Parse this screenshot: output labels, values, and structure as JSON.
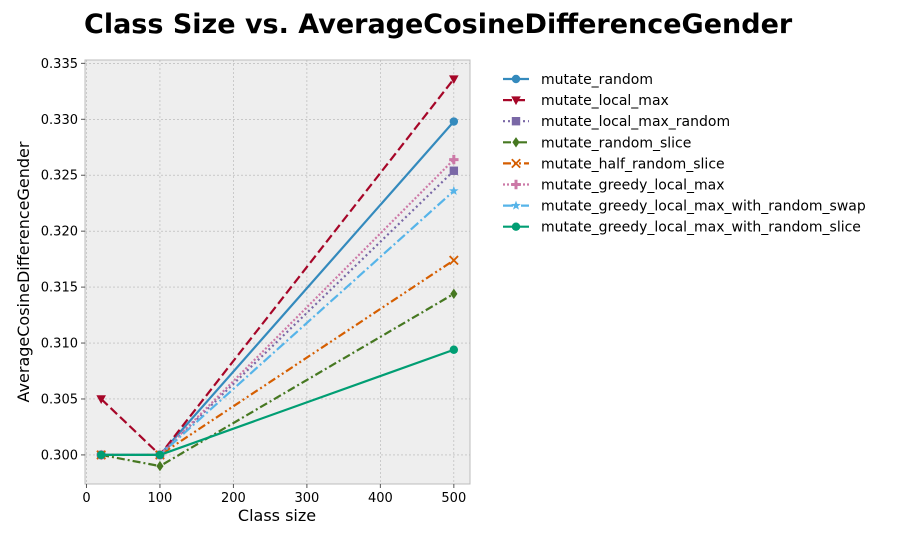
{
  "chart_data": {
    "type": "line",
    "title": "Class Size vs. AverageCosineDifferenceGender",
    "xlabel": "Class size",
    "ylabel": "AverageCosineDifferenceGender",
    "xlim": [
      -2,
      522
    ],
    "ylim": [
      0.2974,
      0.3353
    ],
    "xticks": [
      0,
      100,
      200,
      300,
      400,
      500
    ],
    "yticks": [
      0.3,
      0.305,
      0.31,
      0.315,
      0.32,
      0.325,
      0.33,
      0.335
    ],
    "xtick_labels": [
      "0",
      "100",
      "200",
      "300",
      "400",
      "500"
    ],
    "ytick_labels": [
      "0.300",
      "0.305",
      "0.310",
      "0.315",
      "0.320",
      "0.325",
      "0.330",
      "0.335"
    ],
    "grid": true,
    "legend_position": "outside-right",
    "x": [
      20,
      100,
      500
    ],
    "series": [
      {
        "name": "mutate_random",
        "values": [
          0.3,
          0.3,
          0.3298
        ],
        "color": "#348abd",
        "dash": "solid",
        "marker": "circle"
      },
      {
        "name": "mutate_local_max",
        "values": [
          0.305,
          0.3,
          0.3336
        ],
        "color": "#a60628",
        "dash": "dashed",
        "marker": "triangle-down"
      },
      {
        "name": "mutate_local_max_random",
        "values": [
          0.3,
          0.3,
          0.3254
        ],
        "color": "#7a68a6",
        "dash": "dotted",
        "marker": "square"
      },
      {
        "name": "mutate_random_slice",
        "values": [
          0.3,
          0.299,
          0.3144
        ],
        "color": "#467821",
        "dash": "dashdot",
        "marker": "diamond"
      },
      {
        "name": "mutate_half_random_slice",
        "values": [
          0.3,
          0.3,
          0.3174
        ],
        "color": "#d55e00",
        "dash": "dashdotdot",
        "marker": "x"
      },
      {
        "name": "mutate_greedy_local_max",
        "values": [
          0.3,
          0.3,
          0.3264
        ],
        "color": "#cc79a7",
        "dash": "dotted-dense",
        "marker": "plus"
      },
      {
        "name": "mutate_greedy_local_max_with_random_swap",
        "values": [
          0.3,
          0.3,
          0.3236
        ],
        "color": "#56b4e9",
        "dash": "dashdot-long",
        "marker": "star"
      },
      {
        "name": "mutate_greedy_local_max_with_random_slice",
        "values": [
          0.3,
          0.3,
          0.3094
        ],
        "color": "#009e73",
        "dash": "solid",
        "marker": "circle"
      }
    ]
  }
}
